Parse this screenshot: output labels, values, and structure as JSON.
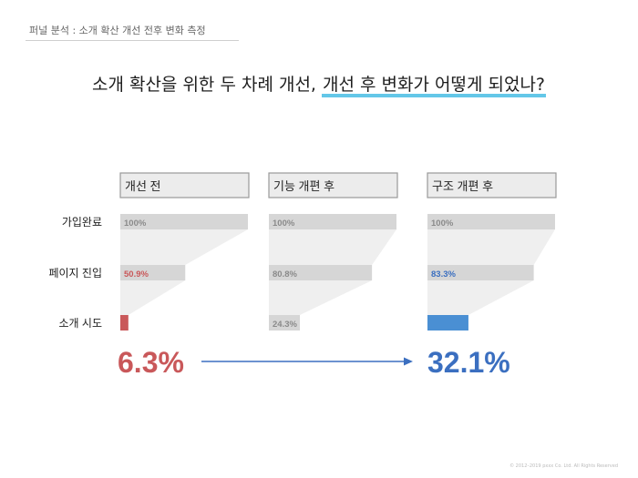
{
  "breadcrumb": "퍼널 분석 : 소개 확산 개선 전후 변화 측정",
  "headline": {
    "part1": "소개 확산을 위한 두 차례 개선, ",
    "highlight": "개선 후 변화가 어떻게 되었나?"
  },
  "footer": "© 2012–2019 pxxx Co. Ltd. All Rights Reserved",
  "colors": {
    "before": "#c9585a",
    "after": "#3b6fc0",
    "bar": "#d6d6d6",
    "funnel": "#efefef",
    "header_bg": "#ececec",
    "header_border": "#9a9a9a",
    "arrow": "#3b6fc0"
  },
  "chart_data": {
    "type": "bar",
    "orientation": "horizontal",
    "categories": [
      "가입완료",
      "페이지 진입",
      "소개 시도"
    ],
    "series": [
      {
        "name": "개선 전",
        "values": [
          100,
          50.9,
          6.3
        ],
        "labels": [
          "100%",
          "50.9%",
          ""
        ]
      },
      {
        "name": "기능 개편 후",
        "values": [
          100,
          80.8,
          24.3
        ],
        "labels": [
          "100%",
          "80.8%",
          "24.3%"
        ]
      },
      {
        "name": "구조 개편 후",
        "values": [
          100,
          83.3,
          32.1
        ],
        "labels": [
          "100%",
          "83.3%",
          ""
        ]
      }
    ],
    "xlim": [
      0,
      100
    ],
    "highlights": {
      "before": "6.3%",
      "after": "32.1%"
    }
  }
}
